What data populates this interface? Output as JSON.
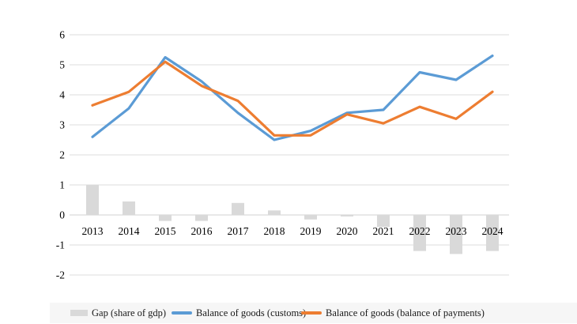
{
  "chart_data": {
    "type": "combo",
    "categories": [
      "2013",
      "2014",
      "2015",
      "2016",
      "2017",
      "2018",
      "2019",
      "2020",
      "2021",
      "2022",
      "2023",
      "2024"
    ],
    "series": [
      {
        "name": "Gap (share of gdp)",
        "type": "bar",
        "color": "#d9d9d9",
        "values": [
          1.0,
          0.45,
          -0.2,
          -0.2,
          0.4,
          0.15,
          -0.15,
          -0.05,
          -0.4,
          -1.2,
          -1.3,
          -1.2
        ]
      },
      {
        "name": "Balance of goods (customs)",
        "type": "line",
        "color": "#5b9bd5",
        "values": [
          2.6,
          3.55,
          5.25,
          4.45,
          3.4,
          2.5,
          2.8,
          3.4,
          3.5,
          4.75,
          4.5,
          5.3
        ]
      },
      {
        "name": "Balance of goods (balance of payments)",
        "type": "line",
        "color": "#ed7d31",
        "values": [
          3.65,
          4.1,
          5.1,
          4.3,
          3.8,
          2.65,
          2.65,
          3.35,
          3.05,
          3.6,
          3.2,
          4.1
        ]
      }
    ],
    "yticks": [
      6,
      5,
      4,
      3,
      2,
      1,
      0,
      -1,
      -2
    ],
    "ylim": [
      -2,
      6
    ],
    "grid": true,
    "gridline_color": "#dcdcdc",
    "zero_line_color": "#d0d0d0",
    "axis_text_color": "#000000",
    "legend_position": "bottom",
    "legend_background": "#f6f6f6",
    "legend": [
      {
        "label": "Gap (share of gdp)",
        "swatch": "bar",
        "color": "#d9d9d9"
      },
      {
        "label": "Balance of goods (customs)",
        "swatch": "line",
        "color": "#5b9bd5"
      },
      {
        "label": "Balance of goods (balance of payments)",
        "swatch": "line",
        "color": "#ed7d31"
      }
    ]
  }
}
